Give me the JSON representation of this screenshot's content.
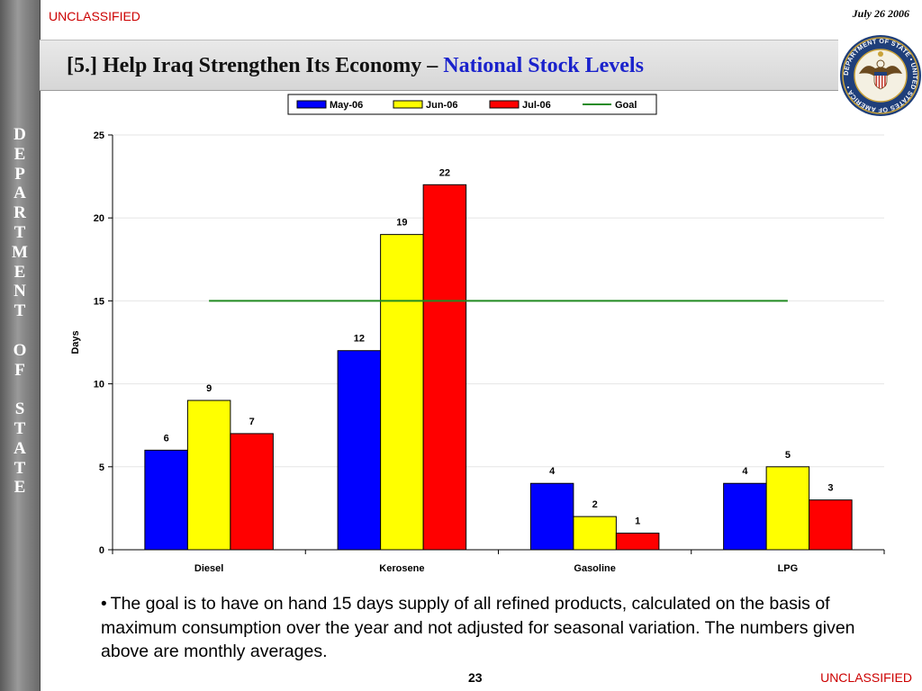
{
  "header": {
    "classification": "UNCLASSIFIED",
    "date": "July 26 2006",
    "title_prefix": "[5.] Help Iraq Strengthen Its Economy – ",
    "title_accent": "National Stock Levels"
  },
  "sidebar": {
    "letters": [
      "D",
      "E",
      "P",
      "A",
      "R",
      "T",
      "M",
      "E",
      "N",
      "T",
      "",
      "O",
      "F",
      "",
      "S",
      "T",
      "A",
      "T",
      "E"
    ]
  },
  "seal": {
    "ring_text": "DEPARTMENT OF STATE • UNITED STATES OF AMERICA •",
    "colors": {
      "ring": "#1f3f7a",
      "gold": "#c9a23a",
      "eagle": "#6b4a1f",
      "shield_red": "#c0392b",
      "shield_blue": "#1f3f7a"
    }
  },
  "chart_data": {
    "type": "bar",
    "categories": [
      "Diesel",
      "Kerosene",
      "Gasoline",
      "LPG"
    ],
    "series": [
      {
        "name": "May-06",
        "values": [
          6,
          12,
          4,
          4
        ],
        "color": "#0000ff"
      },
      {
        "name": "Jun-06",
        "values": [
          9,
          19,
          2,
          5
        ],
        "color": "#ffff00"
      },
      {
        "name": "Jul-06",
        "values": [
          7,
          22,
          1,
          3
        ],
        "color": "#ff0000"
      }
    ],
    "goal": {
      "name": "Goal",
      "value": 15,
      "color": "#228b22"
    },
    "ylabel": "Days",
    "ylim": [
      0,
      25
    ],
    "yticks": [
      0,
      5,
      10,
      15,
      20,
      25
    ],
    "grid": true,
    "legend_position": "top"
  },
  "note": {
    "text": "The goal is to have on hand 15 days supply of all refined products, calculated on the basis of maximum consumption over the year and not adjusted for seasonal variation.  The numbers given above are monthly averages."
  },
  "footer": {
    "page_number": "23",
    "classification": "UNCLASSIFIED"
  }
}
